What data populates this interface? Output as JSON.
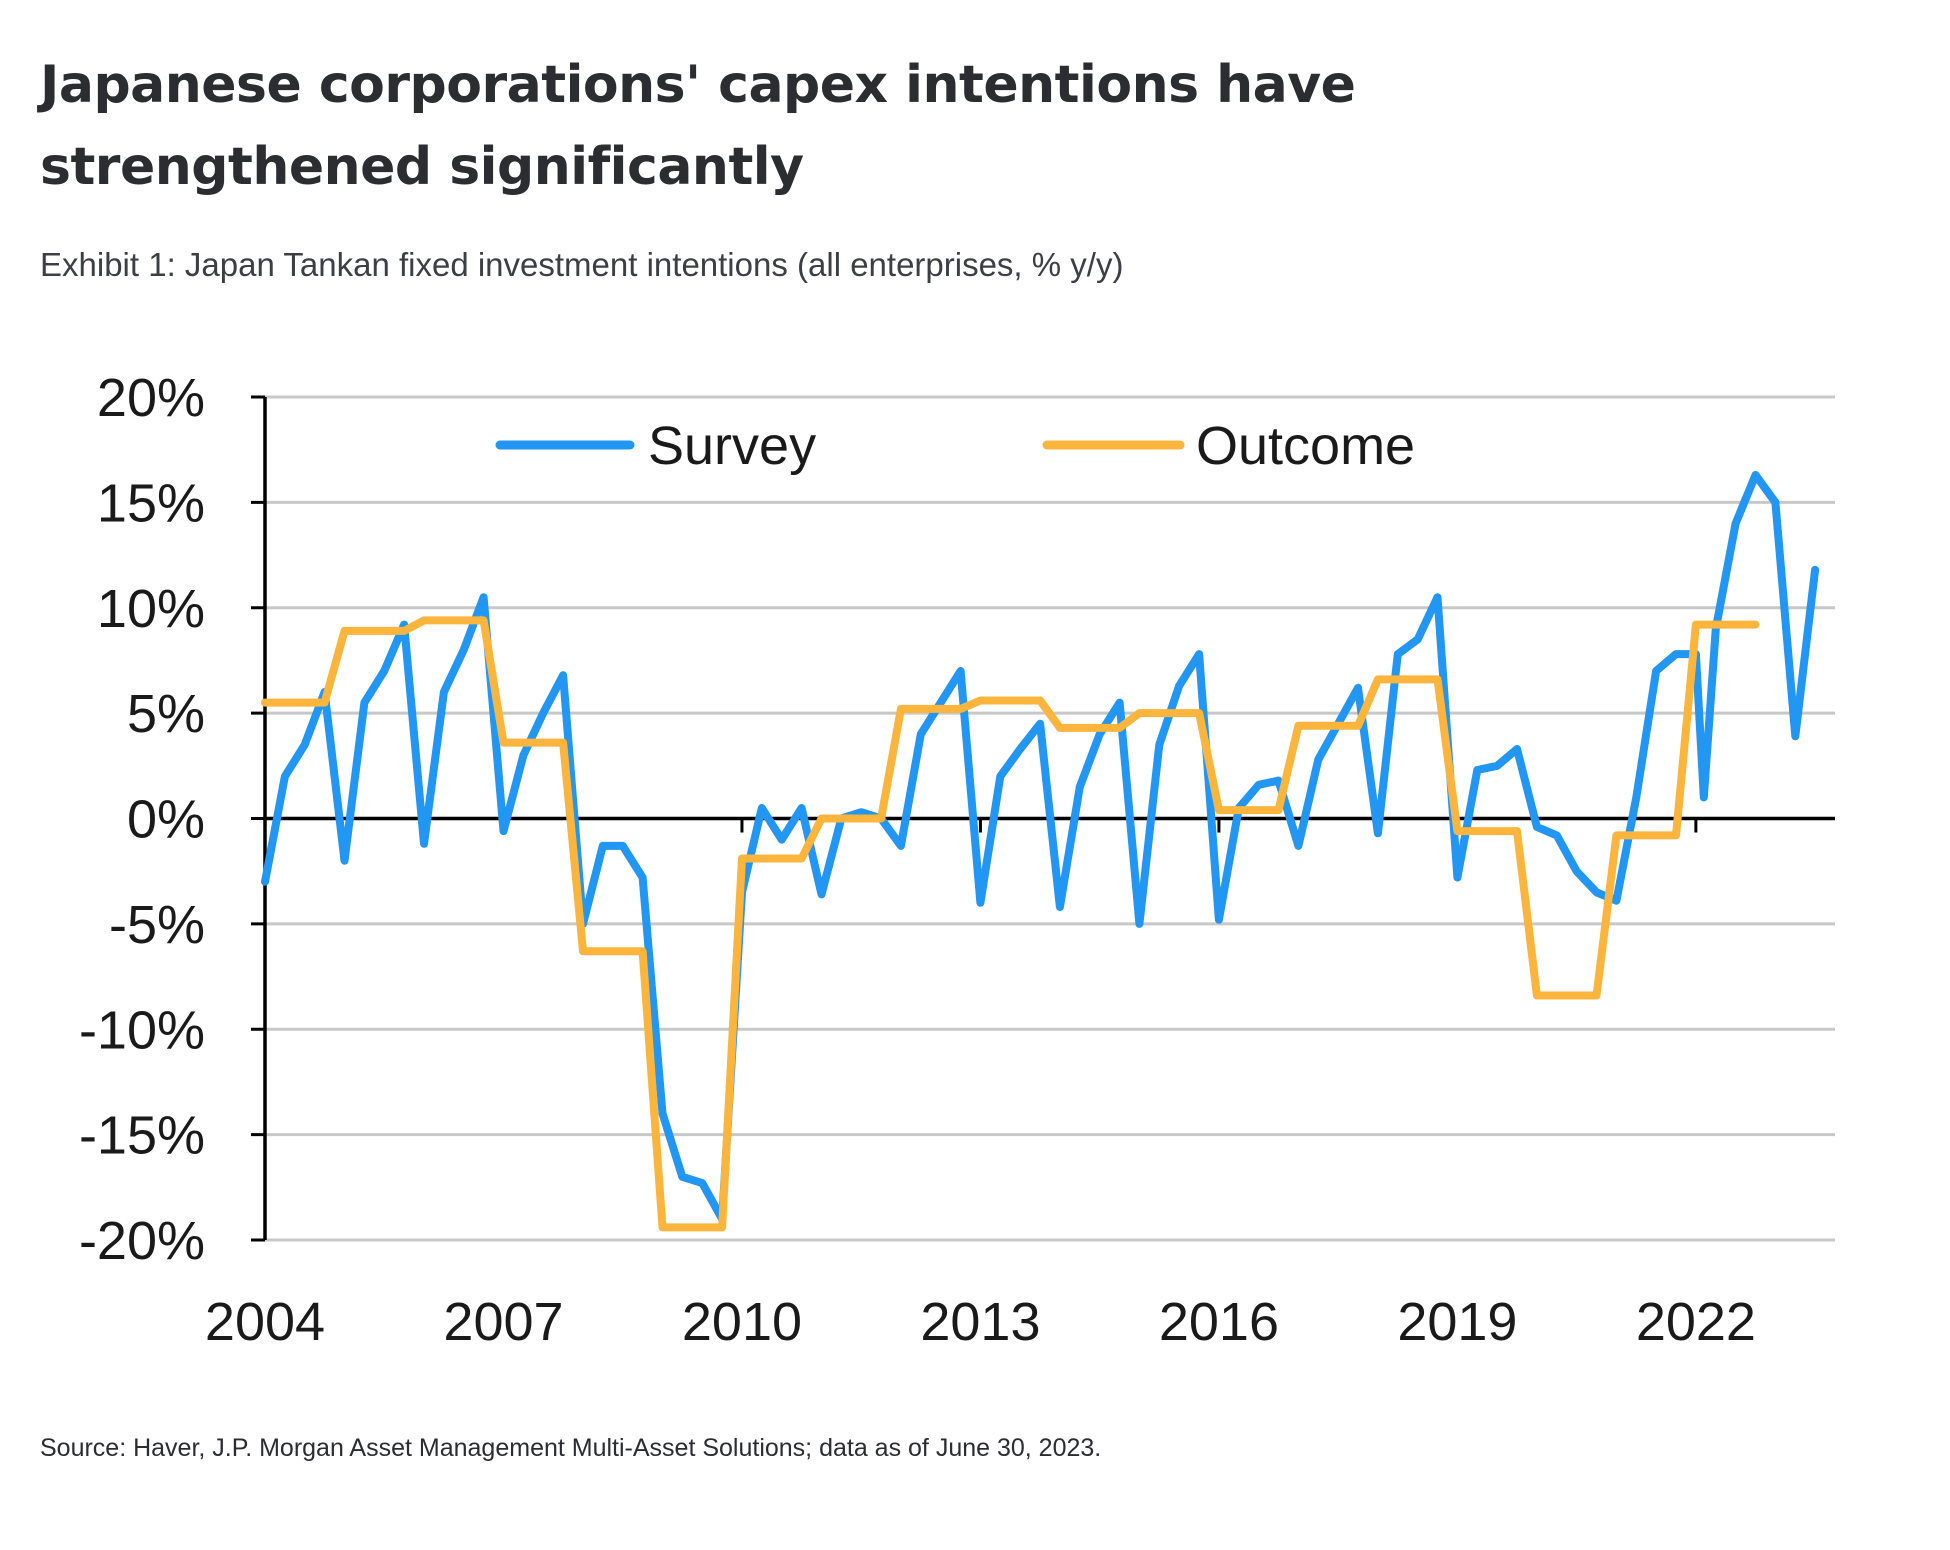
{
  "header": {
    "title": "Japanese corporations' capex intentions have strengthened significantly",
    "subtitle": "Exhibit 1: Japan Tankan fixed investment intentions (all enterprises, % y/y)"
  },
  "footer": {
    "source": "Source: Haver, J.P. Morgan Asset Management Multi-Asset Solutions; data as of June 30, 2023."
  },
  "chart_data": {
    "type": "line",
    "title": "",
    "xlabel": "",
    "ylabel": "",
    "xlim": [
      2004,
      2023.75
    ],
    "ylim": [
      -20,
      20
    ],
    "y_ticks": [
      20,
      15,
      10,
      5,
      0,
      -5,
      -10,
      -15,
      -20
    ],
    "y_tick_labels": [
      "20%",
      "15%",
      "10%",
      "5%",
      "0%",
      "-5%",
      "-10%",
      "-15%",
      "-20%"
    ],
    "x_ticks": [
      2004,
      2007,
      2010,
      2013,
      2016,
      2019,
      2022
    ],
    "x_tick_labels": [
      "2004",
      "2007",
      "2010",
      "2013",
      "2016",
      "2019",
      "2022"
    ],
    "grid": "horizontal",
    "legend": "top",
    "colors": {
      "Survey": "#2196F3",
      "Outcome": "#FBB53C",
      "grid": "#c8c8c8",
      "axis": "#000000"
    },
    "series": [
      {
        "name": "Survey",
        "points": [
          [
            2004.0,
            -3.0
          ],
          [
            2004.25,
            2.0
          ],
          [
            2004.5,
            3.5
          ],
          [
            2004.75,
            6.0
          ],
          [
            2005.0,
            -2.0
          ],
          [
            2005.25,
            5.5
          ],
          [
            2005.5,
            7.0
          ],
          [
            2005.75,
            9.2
          ],
          [
            2006.0,
            -1.2
          ],
          [
            2006.25,
            6.0
          ],
          [
            2006.5,
            8.0
          ],
          [
            2006.75,
            10.5
          ],
          [
            2007.0,
            -0.6
          ],
          [
            2007.25,
            3.0
          ],
          [
            2007.5,
            5.0
          ],
          [
            2007.75,
            6.8
          ],
          [
            2008.0,
            -5.0
          ],
          [
            2008.25,
            -1.3
          ],
          [
            2008.5,
            -1.3
          ],
          [
            2008.75,
            -2.8
          ],
          [
            2009.0,
            -14.0
          ],
          [
            2009.25,
            -17.0
          ],
          [
            2009.5,
            -17.3
          ],
          [
            2009.75,
            -19.0
          ],
          [
            2010.0,
            -3.5
          ],
          [
            2010.25,
            0.5
          ],
          [
            2010.5,
            -1.0
          ],
          [
            2010.75,
            0.5
          ],
          [
            2011.0,
            -3.6
          ],
          [
            2011.25,
            0.0
          ],
          [
            2011.5,
            0.3
          ],
          [
            2011.75,
            0.0
          ],
          [
            2012.0,
            -1.3
          ],
          [
            2012.25,
            4.0
          ],
          [
            2012.5,
            5.5
          ],
          [
            2012.75,
            7.0
          ],
          [
            2013.0,
            -4.0
          ],
          [
            2013.25,
            2.0
          ],
          [
            2013.5,
            3.3
          ],
          [
            2013.75,
            4.5
          ],
          [
            2014.0,
            -4.2
          ],
          [
            2014.25,
            1.5
          ],
          [
            2014.5,
            4.0
          ],
          [
            2014.75,
            5.5
          ],
          [
            2015.0,
            -5.0
          ],
          [
            2015.25,
            3.5
          ],
          [
            2015.5,
            6.3
          ],
          [
            2015.75,
            7.8
          ],
          [
            2016.0,
            -4.8
          ],
          [
            2016.25,
            0.5
          ],
          [
            2016.5,
            1.6
          ],
          [
            2016.75,
            1.8
          ],
          [
            2017.0,
            -1.3
          ],
          [
            2017.25,
            2.8
          ],
          [
            2017.5,
            4.5
          ],
          [
            2017.75,
            6.2
          ],
          [
            2018.0,
            -0.7
          ],
          [
            2018.25,
            7.8
          ],
          [
            2018.5,
            8.5
          ],
          [
            2018.75,
            10.5
          ],
          [
            2019.0,
            -2.8
          ],
          [
            2019.25,
            2.3
          ],
          [
            2019.5,
            2.5
          ],
          [
            2019.75,
            3.3
          ],
          [
            2020.0,
            -0.4
          ],
          [
            2020.25,
            -0.8
          ],
          [
            2020.5,
            -2.5
          ],
          [
            2020.75,
            -3.5
          ],
          [
            2021.0,
            -3.9
          ],
          [
            2021.25,
            1.0
          ],
          [
            2021.5,
            7.0
          ],
          [
            2021.75,
            7.8
          ],
          [
            2022.0,
            7.8
          ],
          [
            2022.1,
            1.0
          ],
          [
            2022.25,
            9.0
          ],
          [
            2022.5,
            14.0
          ],
          [
            2022.75,
            16.3
          ],
          [
            2023.0,
            15.0
          ],
          [
            2023.25,
            3.9
          ],
          [
            2023.5,
            11.8
          ]
        ]
      },
      {
        "name": "Outcome",
        "points": [
          [
            2004.0,
            5.5
          ],
          [
            2004.75,
            5.5
          ],
          [
            2005.0,
            8.9
          ],
          [
            2005.75,
            8.9
          ],
          [
            2006.0,
            9.4
          ],
          [
            2006.75,
            9.4
          ],
          [
            2007.0,
            3.6
          ],
          [
            2007.75,
            3.6
          ],
          [
            2008.0,
            -6.3
          ],
          [
            2008.75,
            -6.3
          ],
          [
            2009.0,
            -19.4
          ],
          [
            2009.75,
            -19.4
          ],
          [
            2010.0,
            -1.9
          ],
          [
            2010.75,
            -1.9
          ],
          [
            2011.0,
            0.0
          ],
          [
            2011.75,
            0.0
          ],
          [
            2012.0,
            5.2
          ],
          [
            2012.75,
            5.2
          ],
          [
            2013.0,
            5.6
          ],
          [
            2013.75,
            5.6
          ],
          [
            2014.0,
            4.3
          ],
          [
            2014.75,
            4.3
          ],
          [
            2015.0,
            5.0
          ],
          [
            2015.75,
            5.0
          ],
          [
            2016.0,
            0.4
          ],
          [
            2016.75,
            0.4
          ],
          [
            2017.0,
            4.4
          ],
          [
            2017.75,
            4.4
          ],
          [
            2018.0,
            6.6
          ],
          [
            2018.75,
            6.6
          ],
          [
            2019.0,
            -0.6
          ],
          [
            2019.75,
            -0.6
          ],
          [
            2020.0,
            -8.4
          ],
          [
            2020.75,
            -8.4
          ],
          [
            2021.0,
            -0.8
          ],
          [
            2021.75,
            -0.8
          ],
          [
            2022.0,
            9.2
          ],
          [
            2022.75,
            9.2
          ]
        ]
      }
    ]
  }
}
